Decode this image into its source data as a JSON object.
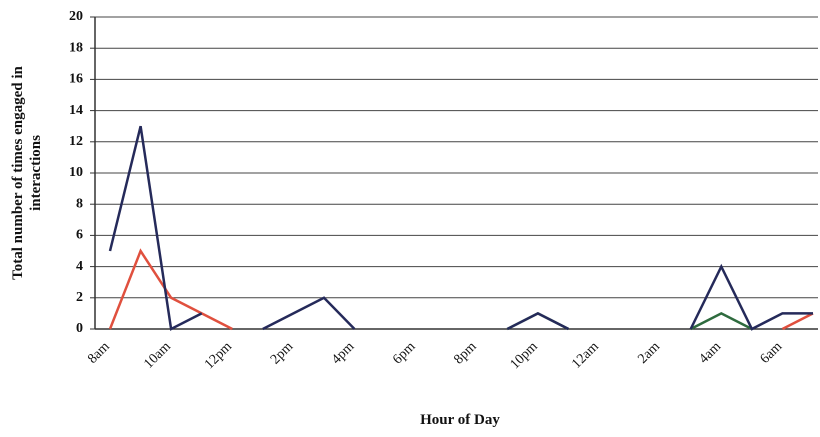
{
  "chart_data": {
    "type": "line",
    "xlabel": "Hour of Day",
    "ylabel": [
      "Total number of times engaged in",
      "interactions"
    ],
    "categories": [
      "8am",
      null,
      "10am",
      null,
      "12pm",
      null,
      "2pm",
      null,
      "4pm",
      null,
      "6pm",
      null,
      "8pm",
      null,
      "10pm",
      null,
      "12am",
      null,
      "2am",
      null,
      "4am",
      null,
      "6am",
      null
    ],
    "series": [
      {
        "color": "#e0503e",
        "values": [
          0,
          5,
          2,
          1,
          0,
          null,
          null,
          null,
          null,
          null,
          null,
          null,
          null,
          null,
          null,
          null,
          null,
          null,
          null,
          null,
          null,
          null,
          0,
          1
        ]
      },
      {
        "color": "#2e6b3e",
        "values": [
          null,
          null,
          null,
          null,
          null,
          null,
          null,
          null,
          null,
          null,
          null,
          null,
          null,
          0,
          1,
          0,
          null,
          null,
          null,
          0,
          1,
          0,
          null,
          null
        ]
      },
      {
        "color": "#252a5a",
        "values": [
          5,
          13,
          0,
          1,
          null,
          0,
          1,
          2,
          0,
          null,
          null,
          null,
          null,
          0,
          1,
          0,
          null,
          null,
          null,
          0,
          4,
          0,
          1,
          1
        ]
      }
    ],
    "ylim": [
      0,
      20
    ],
    "yticks": [
      0,
      2,
      4,
      6,
      8,
      10,
      12,
      14,
      16,
      18,
      20
    ],
    "grid": true
  }
}
